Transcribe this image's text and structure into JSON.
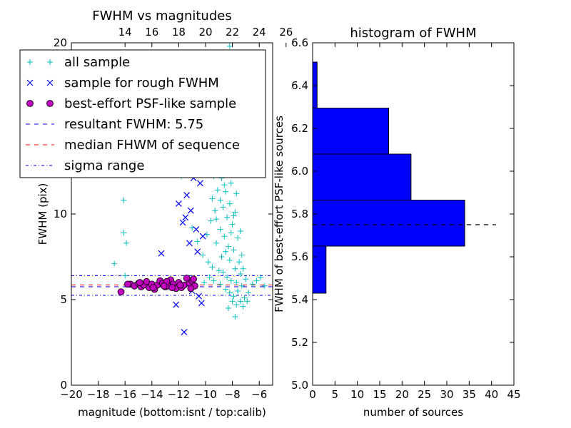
{
  "chart_data": [
    {
      "type": "scatter",
      "title": "FWHM vs magnitudes",
      "xlabel": "magnitude (bottom:isnt / top:calib)",
      "ylabel": "FWHM (pix)",
      "xlim": [
        -20,
        -5
      ],
      "ylim": [
        0,
        20
      ],
      "x_ticks": [
        -20,
        -18,
        -16,
        -14,
        -12,
        -10,
        -8,
        -6
      ],
      "x_tick_labels": [
        "−20",
        "−18",
        "−16",
        "−14",
        "−12",
        "−10",
        "−8",
        "−6"
      ],
      "y_ticks": [
        0,
        5,
        10,
        20
      ],
      "y_tick_labels": [
        "0",
        "5",
        "10",
        "20"
      ],
      "top_axis": {
        "offset": 30,
        "ticks": [
          14,
          16,
          18,
          20,
          22,
          24,
          26
        ],
        "tick_labels": [
          "14",
          "16",
          "18",
          "20",
          "22",
          "24",
          "26"
        ]
      },
      "legend": {
        "placement": "upper-left",
        "entries": [
          {
            "label": "all sample",
            "marker": "+",
            "color": "#00bfbf"
          },
          {
            "label": "sample for rough FWHM",
            "marker": "x",
            "color": "#0000ff"
          },
          {
            "label": "best-effort PSF-like sample",
            "marker": "o",
            "color": "#bf00bf"
          },
          {
            "label": "resultant FWHM: 5.75",
            "line": "dashed",
            "color": "#0000ff"
          },
          {
            "label": "median FHWM of sequence",
            "line": "dashed",
            "color": "#ff0000"
          },
          {
            "label": "sigma range",
            "line": "dashdot",
            "color": "#0000ff"
          }
        ]
      },
      "hlines": [
        {
          "y": 5.75,
          "style": "dashed",
          "color": "#0000ff"
        },
        {
          "y": 5.85,
          "style": "dashed",
          "color": "#ff0000"
        },
        {
          "y": 6.4,
          "style": "dashdot",
          "color": "#0000ff"
        },
        {
          "y": 5.25,
          "style": "dashdot",
          "color": "#0000ff"
        }
      ],
      "series": [
        {
          "name": "all sample",
          "marker": "+",
          "color": "#00bfbf",
          "points": [
            [
              -16.8,
              7.1
            ],
            [
              -16.1,
              10.8
            ],
            [
              -16.1,
              8.9
            ],
            [
              -15.9,
              8.3
            ],
            [
              -16.0,
              6.4
            ],
            [
              -12.2,
              12.5
            ],
            [
              -11.8,
              12.2
            ],
            [
              -11.5,
              13.0
            ],
            [
              -10.9,
              14.2
            ],
            [
              -10.7,
              12.6
            ],
            [
              -11.0,
              9.2
            ],
            [
              -10.6,
              8.4
            ],
            [
              -10.2,
              7.6
            ],
            [
              -9.8,
              7.2
            ],
            [
              -9.5,
              6.9
            ],
            [
              -9.9,
              8.8
            ],
            [
              -9.6,
              9.6
            ],
            [
              -9.3,
              10.2
            ],
            [
              -9.1,
              11.4
            ],
            [
              -9.0,
              12.8
            ],
            [
              -8.9,
              13.6
            ],
            [
              -8.8,
              14.5
            ],
            [
              -8.7,
              15.2
            ],
            [
              -8.6,
              16.0
            ],
            [
              -8.5,
              16.8
            ],
            [
              -8.4,
              17.5
            ],
            [
              -8.3,
              18.0
            ],
            [
              -8.2,
              19.8
            ],
            [
              -8.4,
              14.1
            ],
            [
              -8.6,
              13.2
            ],
            [
              -8.8,
              12.1
            ],
            [
              -8.5,
              11.3
            ],
            [
              -8.3,
              12.7
            ],
            [
              -8.1,
              13.5
            ],
            [
              -8.0,
              15.0
            ],
            [
              -7.9,
              14.2
            ],
            [
              -8.2,
              10.6
            ],
            [
              -8.4,
              9.8
            ],
            [
              -8.7,
              10.4
            ],
            [
              -8.9,
              9.1
            ],
            [
              -9.2,
              8.3
            ],
            [
              -8.6,
              8.7
            ],
            [
              -8.3,
              8.1
            ],
            [
              -8.0,
              9.4
            ],
            [
              -7.8,
              10.1
            ],
            [
              -7.7,
              11.2
            ],
            [
              -7.6,
              12.3
            ],
            [
              -8.1,
              11.8
            ],
            [
              -8.5,
              7.8
            ],
            [
              -8.2,
              7.3
            ],
            [
              -7.9,
              7.9
            ],
            [
              -7.6,
              8.6
            ],
            [
              -7.4,
              9.0
            ],
            [
              -7.8,
              6.8
            ],
            [
              -7.5,
              7.2
            ],
            [
              -7.3,
              7.6
            ],
            [
              -8.7,
              6.6
            ],
            [
              -8.4,
              6.3
            ],
            [
              -8.1,
              6.1
            ],
            [
              -7.7,
              6.0
            ],
            [
              -7.4,
              6.5
            ],
            [
              -7.2,
              6.8
            ],
            [
              -8.9,
              5.9
            ],
            [
              -8.5,
              5.6
            ],
            [
              -8.2,
              5.4
            ],
            [
              -7.9,
              5.2
            ],
            [
              -7.6,
              5.5
            ],
            [
              -7.3,
              5.8
            ],
            [
              -7.0,
              6.2
            ],
            [
              -8.0,
              4.9
            ],
            [
              -7.7,
              4.7
            ],
            [
              -7.4,
              4.9
            ],
            [
              -7.1,
              5.1
            ],
            [
              -8.3,
              4.5
            ],
            [
              -7.8,
              4.0
            ],
            [
              -7.2,
              4.6
            ],
            [
              -6.8,
              5.4
            ],
            [
              -6.5,
              5.9
            ],
            [
              -6.2,
              6.1
            ],
            [
              -5.9,
              6.3
            ],
            [
              -5.6,
              5.8
            ],
            [
              -6.9,
              4.9
            ],
            [
              -9.4,
              6.1
            ],
            [
              -9.7,
              6.3
            ],
            [
              -10.1,
              6.0
            ],
            [
              -8.8,
              7.5
            ],
            [
              -9.0,
              6.7
            ],
            [
              -8.1,
              8.9
            ],
            [
              -7.9,
              9.9
            ],
            [
              -8.6,
              11.7
            ],
            [
              -8.9,
              10.8
            ],
            [
              -9.2,
              9.7
            ],
            [
              -9.5,
              10.9
            ],
            [
              -9.4,
              12.2
            ],
            [
              -8.3,
              13.9
            ],
            [
              -8.0,
              12.4
            ],
            [
              -7.8,
              13.1
            ],
            [
              -8.6,
              15.6
            ],
            [
              -8.4,
              16.3
            ],
            [
              -9.1,
              15.4
            ]
          ]
        },
        {
          "name": "sample for rough FWHM",
          "marker": "x",
          "color": "#0000ff",
          "points": [
            [
              -13.3,
              7.7
            ],
            [
              -12.2,
              4.7
            ],
            [
              -11.9,
              12.5
            ],
            [
              -11.6,
              3.1
            ],
            [
              -11.5,
              9.8
            ],
            [
              -11.4,
              11.1
            ],
            [
              -11.2,
              8.3
            ],
            [
              -11.1,
              10.2
            ],
            [
              -10.9,
              12.1
            ],
            [
              -10.8,
              13.4
            ],
            [
              -10.7,
              9.1
            ],
            [
              -10.6,
              7.8
            ],
            [
              -10.4,
              11.8
            ],
            [
              -11.7,
              9.5
            ],
            [
              -11.3,
              14.4
            ],
            [
              -10.5,
              5.2
            ],
            [
              -10.2,
              8.7
            ],
            [
              -12.0,
              10.6
            ],
            [
              -11.0,
              5.5
            ],
            [
              -10.3,
              4.8
            ]
          ]
        },
        {
          "name": "best-effort PSF-like sample",
          "marker": "o",
          "color": "#bf00bf",
          "points": [
            [
              -16.3,
              5.45
            ],
            [
              -15.6,
              5.9
            ],
            [
              -15.3,
              5.8
            ],
            [
              -15.0,
              5.95
            ],
            [
              -14.8,
              5.75
            ],
            [
              -14.6,
              5.85
            ],
            [
              -14.4,
              6.05
            ],
            [
              -14.2,
              5.7
            ],
            [
              -14.0,
              5.9
            ],
            [
              -13.8,
              5.6
            ],
            [
              -13.6,
              5.85
            ],
            [
              -13.4,
              6.1
            ],
            [
              -13.2,
              5.95
            ],
            [
              -13.0,
              5.75
            ],
            [
              -12.8,
              5.8
            ],
            [
              -12.6,
              6.15
            ],
            [
              -12.4,
              5.9
            ],
            [
              -12.2,
              5.65
            ],
            [
              -12.0,
              6.0
            ],
            [
              -11.8,
              5.7
            ],
            [
              -11.6,
              5.85
            ],
            [
              -11.4,
              6.25
            ],
            [
              -11.2,
              5.95
            ],
            [
              -11.0,
              6.1
            ],
            [
              -10.8,
              5.8
            ],
            [
              -15.8,
              5.9
            ],
            [
              -13.9,
              5.7
            ],
            [
              -12.9,
              6.05
            ],
            [
              -11.9,
              5.85
            ],
            [
              -11.1,
              5.65
            ],
            [
              -14.9,
              6.0
            ],
            [
              -13.1,
              5.8
            ],
            [
              -12.5,
              5.7
            ],
            [
              -10.9,
              6.2
            ]
          ]
        }
      ]
    },
    {
      "type": "bar",
      "orientation": "horizontal",
      "title": "histogram of FWHM",
      "xlabel": "number of sources",
      "ylabel": "FWHM of best-effort PSF-like sources",
      "xlim": [
        0,
        45
      ],
      "ylim": [
        5.0,
        6.6
      ],
      "x_ticks": [
        0,
        5,
        10,
        15,
        20,
        25,
        30,
        35,
        40,
        45
      ],
      "x_tick_labels": [
        "0",
        "5",
        "10",
        "15",
        "20",
        "25",
        "30",
        "35",
        "40",
        "45"
      ],
      "y_ticks": [
        5.0,
        5.2,
        5.4,
        5.6,
        5.8,
        6.0,
        6.2,
        6.4,
        6.6
      ],
      "y_tick_labels": [
        "5.0",
        "5.2",
        "5.4",
        "5.6",
        "5.8",
        "6.0",
        "6.2",
        "6.4",
        "6.6"
      ],
      "bin_edges": [
        5.43,
        5.65,
        5.865,
        6.08,
        6.295,
        6.51
      ],
      "counts": [
        3,
        34,
        22,
        17,
        1
      ],
      "bar_color": "#0000ff",
      "hline": {
        "y": 5.75,
        "xmax": 41,
        "style": "dashed",
        "color": "#000000"
      }
    }
  ]
}
